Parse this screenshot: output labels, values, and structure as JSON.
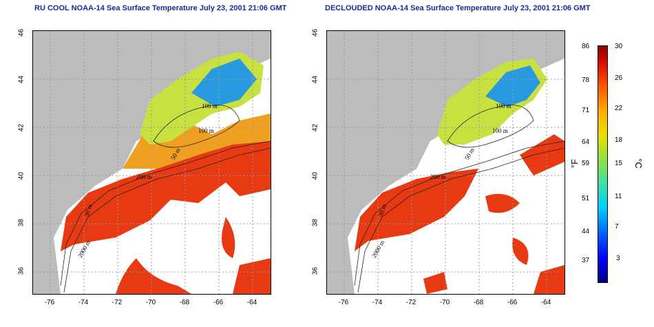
{
  "left_title": "RU COOL NOAA-14 Sea Surface Temperature July 23, 2001 21:06 GMT",
  "right_title": "DECLOUDED NOAA-14 Sea Surface Temperature July 23, 2001 21:06 GMT",
  "lat_ticks": [
    "46",
    "44",
    "42",
    "40",
    "38",
    "36"
  ],
  "lon_ticks": [
    "-76",
    "-74",
    "-72",
    "-70",
    "-68",
    "-66",
    "-64"
  ],
  "contour_labels": {
    "c100a": "100 m",
    "c100b": "100 m",
    "c50": "50 m",
    "c200": "200 m",
    "c30": "30 m",
    "c2000": "2000 m"
  },
  "colorbar": {
    "fahrenheit": [
      "86",
      "78",
      "71",
      "64",
      "59",
      "51",
      "44",
      "37"
    ],
    "celsius": [
      "30",
      "26",
      "22",
      "18",
      "15",
      "11",
      "7",
      "3"
    ],
    "unit_f": "°F",
    "unit_c": "°C",
    "colors": [
      "#00007a",
      "#0000ff",
      "#00d0ff",
      "#90e040",
      "#e8e000",
      "#ff6000",
      "#900000"
    ]
  },
  "colors": {
    "land": "#bcbcbc",
    "warm": "#e83a12",
    "cool": "#2a9ae0",
    "mid": "#e8d020",
    "title": "#1a2a9a"
  }
}
